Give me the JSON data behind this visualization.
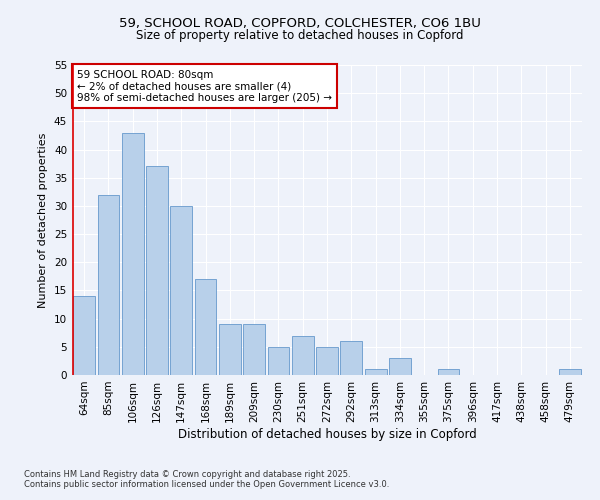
{
  "title_line1": "59, SCHOOL ROAD, COPFORD, COLCHESTER, CO6 1BU",
  "title_line2": "Size of property relative to detached houses in Copford",
  "xlabel": "Distribution of detached houses by size in Copford",
  "ylabel": "Number of detached properties",
  "categories": [
    "64sqm",
    "85sqm",
    "106sqm",
    "126sqm",
    "147sqm",
    "168sqm",
    "189sqm",
    "209sqm",
    "230sqm",
    "251sqm",
    "272sqm",
    "292sqm",
    "313sqm",
    "334sqm",
    "355sqm",
    "375sqm",
    "396sqm",
    "417sqm",
    "438sqm",
    "458sqm",
    "479sqm"
  ],
  "values": [
    14,
    32,
    43,
    37,
    30,
    17,
    9,
    9,
    5,
    7,
    5,
    6,
    1,
    3,
    0,
    1,
    0,
    0,
    0,
    0,
    1
  ],
  "bar_color": "#b8d0ea",
  "bar_edge_color": "#6699cc",
  "highlight_color": "#dd0000",
  "annotation_text": "59 SCHOOL ROAD: 80sqm\n← 2% of detached houses are smaller (4)\n98% of semi-detached houses are larger (205) →",
  "annotation_box_facecolor": "#ffffff",
  "annotation_box_edgecolor": "#cc0000",
  "bg_color": "#eef2fa",
  "grid_color": "#ffffff",
  "ylim": [
    0,
    55
  ],
  "yticks": [
    0,
    5,
    10,
    15,
    20,
    25,
    30,
    35,
    40,
    45,
    50,
    55
  ],
  "title_fontsize": 9.5,
  "subtitle_fontsize": 8.5,
  "tick_fontsize": 7.5,
  "ylabel_fontsize": 8,
  "xlabel_fontsize": 8.5,
  "annot_fontsize": 7.5,
  "footer_fontsize": 6,
  "footer_line1": "Contains HM Land Registry data © Crown copyright and database right 2025.",
  "footer_line2": "Contains public sector information licensed under the Open Government Licence v3.0."
}
